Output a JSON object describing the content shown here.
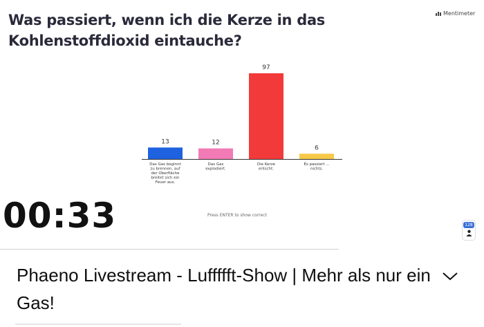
{
  "slide": {
    "question": "Was passiert, wenn ich die Kerze in das Kohlenstoffdioxid eintauche?",
    "brand": "Mentimeter",
    "timer": "00:33",
    "hint": "Press ENTER to show correct",
    "participants": "128"
  },
  "chart_data": {
    "type": "bar",
    "categories": [
      [
        "Das Gas beginnt",
        "zu brennen, auf",
        "der Oberfläche",
        "breitet sich ein",
        "Feuer aus."
      ],
      [
        "Das Gas",
        "explodiert."
      ],
      [
        "Die Kerze",
        "erlischt."
      ],
      [
        "Es passiert ...",
        "nichts."
      ]
    ],
    "values": [
      13,
      12,
      97,
      6
    ],
    "colors": [
      "#1f62e0",
      "#f27ab5",
      "#f23a3a",
      "#f7c948"
    ],
    "ylim": [
      0,
      97
    ],
    "grid": false
  },
  "video": {
    "title": "Phaeno Livestream - Luffffft-Show | Mehr als nur ein Gas!"
  },
  "icons": {
    "expand": "chevron-down-icon",
    "person": "person-icon"
  }
}
